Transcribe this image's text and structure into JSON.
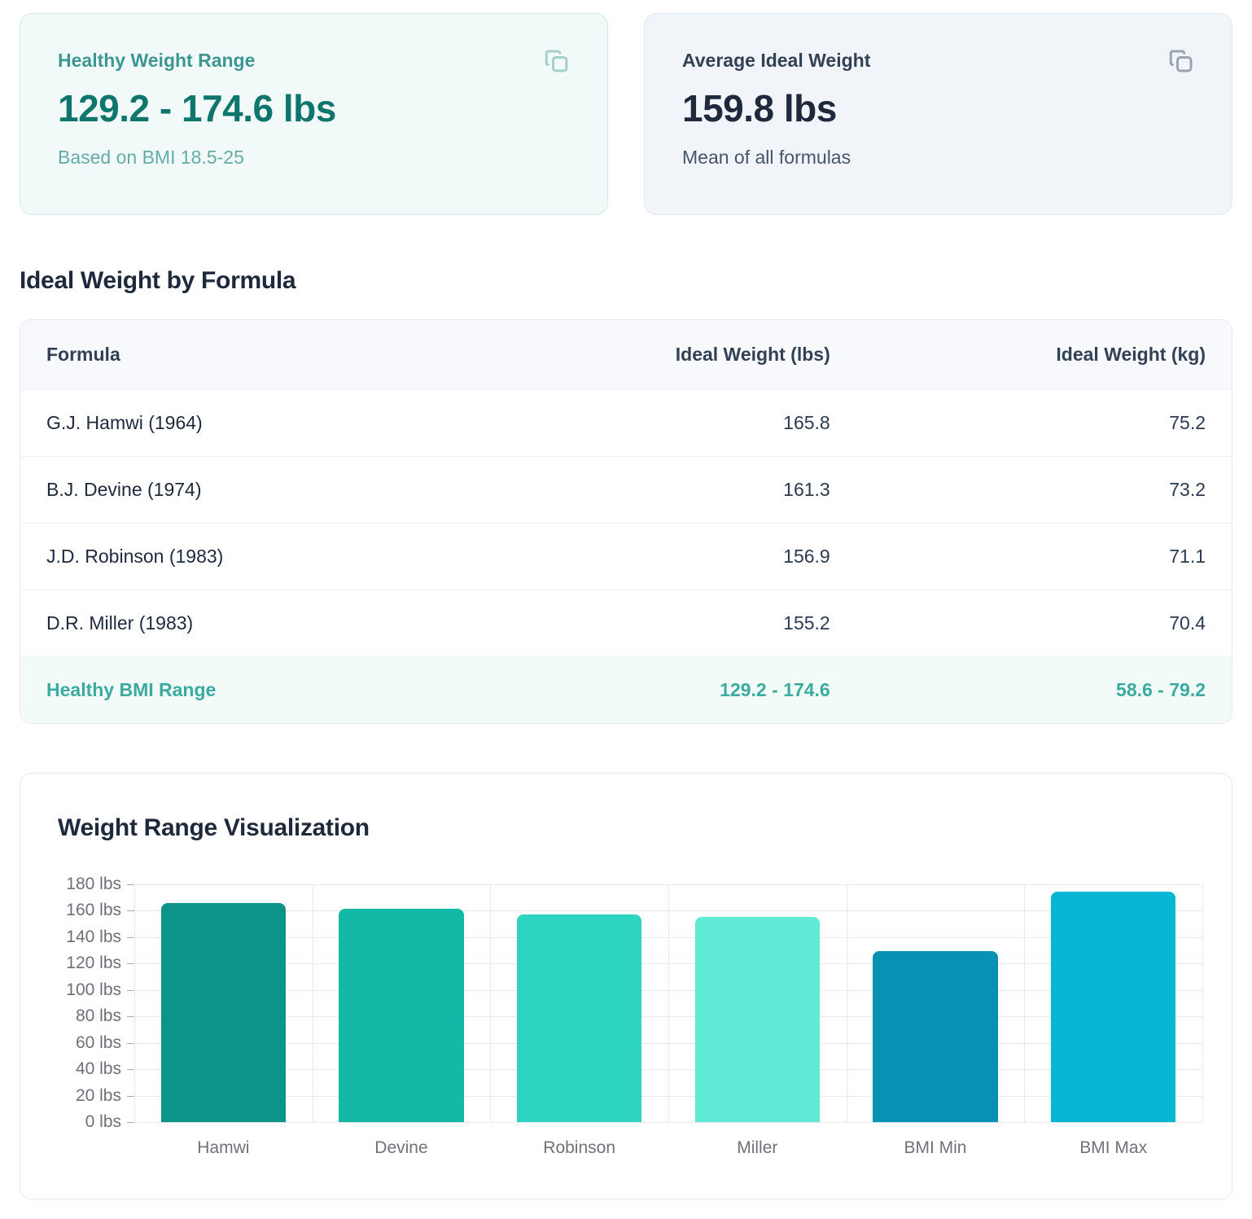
{
  "cards": {
    "healthy_range": {
      "label": "Healthy Weight Range",
      "value": "129.2 - 174.6 lbs",
      "subtitle": "Based on BMI 18.5-25"
    },
    "average": {
      "label": "Average Ideal Weight",
      "value": "159.8 lbs",
      "subtitle": "Mean of all formulas"
    }
  },
  "table_section": {
    "heading": "Ideal Weight by Formula",
    "columns": [
      "Formula",
      "Ideal Weight (lbs)",
      "Ideal Weight (kg)"
    ],
    "rows": [
      {
        "formula": "G.J. Hamwi (1964)",
        "lbs": "165.8",
        "kg": "75.2"
      },
      {
        "formula": "B.J. Devine (1974)",
        "lbs": "161.3",
        "kg": "73.2"
      },
      {
        "formula": "J.D. Robinson (1983)",
        "lbs": "156.9",
        "kg": "71.1"
      },
      {
        "formula": "D.R. Miller (1983)",
        "lbs": "155.2",
        "kg": "70.4"
      },
      {
        "formula": "Healthy BMI Range",
        "lbs": "129.2 - 174.6",
        "kg": "58.6 - 79.2"
      }
    ]
  },
  "chart_section": {
    "heading": "Weight Range Visualization"
  },
  "chart_data": {
    "type": "bar",
    "title": "Weight Range Visualization",
    "categories": [
      "Hamwi",
      "Devine",
      "Robinson",
      "Miller",
      "BMI Min",
      "BMI Max"
    ],
    "values": [
      165.8,
      161.3,
      156.9,
      155.2,
      129.2,
      174.6
    ],
    "bar_colors": [
      "#0d9488",
      "#14b8a6",
      "#2dd4bf",
      "#5eead4",
      "#0891b2",
      "#06b6d4"
    ],
    "xlabel": "",
    "ylabel": "",
    "ylabel_format": "{value} lbs",
    "ylim": [
      0,
      180
    ],
    "ytick_step": 20,
    "grid": true,
    "legend": false
  },
  "icons": {
    "copy": "copy-icon"
  },
  "colors": {
    "accent_teal": "#0d9488",
    "accent_teal_dark": "#0f766e",
    "teal_card_bg": "#f1faf9",
    "gray_card_bg": "#f1f4f8",
    "dark_navy": "#1e293b",
    "highlight_row_bg": "#f3fbf9",
    "highlight_row_text": "#3bab9f"
  }
}
